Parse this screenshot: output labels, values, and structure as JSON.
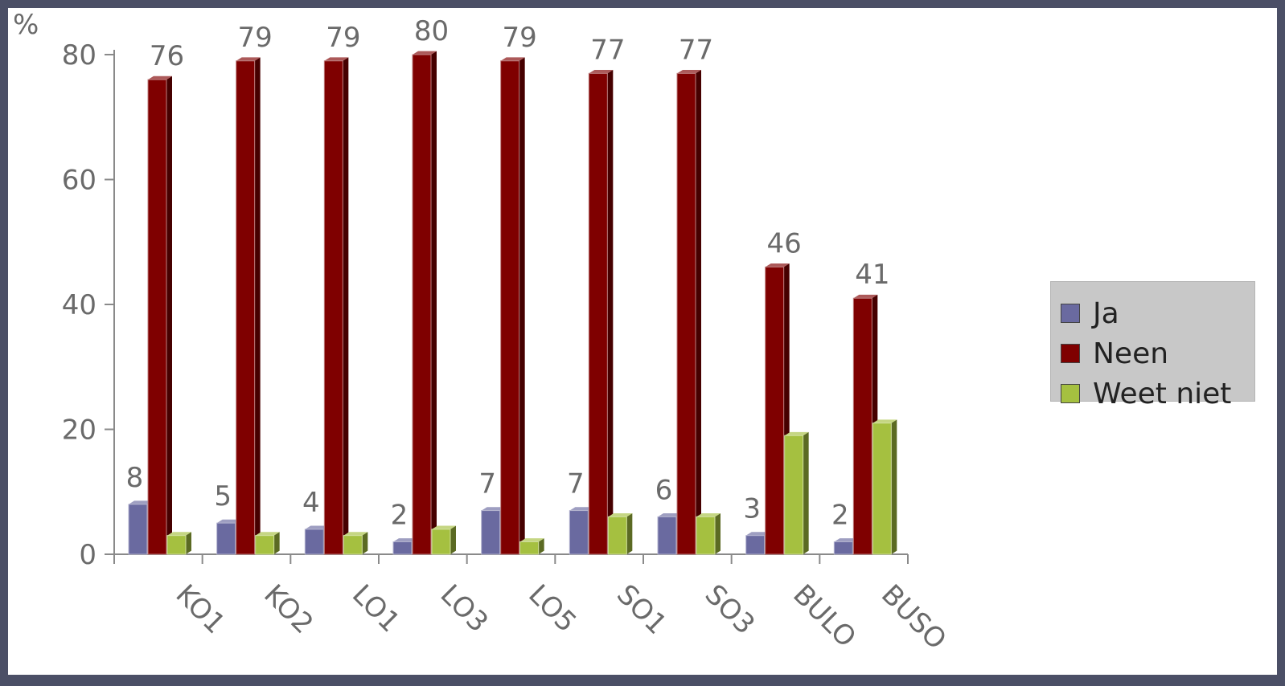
{
  "chart_data": {
    "type": "bar",
    "ylabel": "%",
    "ylim": [
      0,
      80
    ],
    "yticks": [
      0,
      20,
      40,
      60,
      80
    ],
    "categories": [
      "KO1",
      "KO2",
      "LO1",
      "LO3",
      "LO5",
      "SO1",
      "SO3",
      "BULO",
      "BUSO"
    ],
    "series": [
      {
        "name": "Ja",
        "color": "#6a6aa0",
        "values": [
          8,
          5,
          4,
          2,
          7,
          7,
          6,
          3,
          2
        ]
      },
      {
        "name": "Neen",
        "color": "#7f0000",
        "values": [
          76,
          79,
          79,
          80,
          79,
          77,
          77,
          46,
          41
        ]
      },
      {
        "name": "Weet niet",
        "color": "#a5c040",
        "values": [
          3,
          3,
          3,
          4,
          2,
          6,
          6,
          19,
          21
        ]
      }
    ],
    "data_labels_series": [
      "Ja",
      "Neen"
    ],
    "legend_position": "right",
    "grid": false
  }
}
